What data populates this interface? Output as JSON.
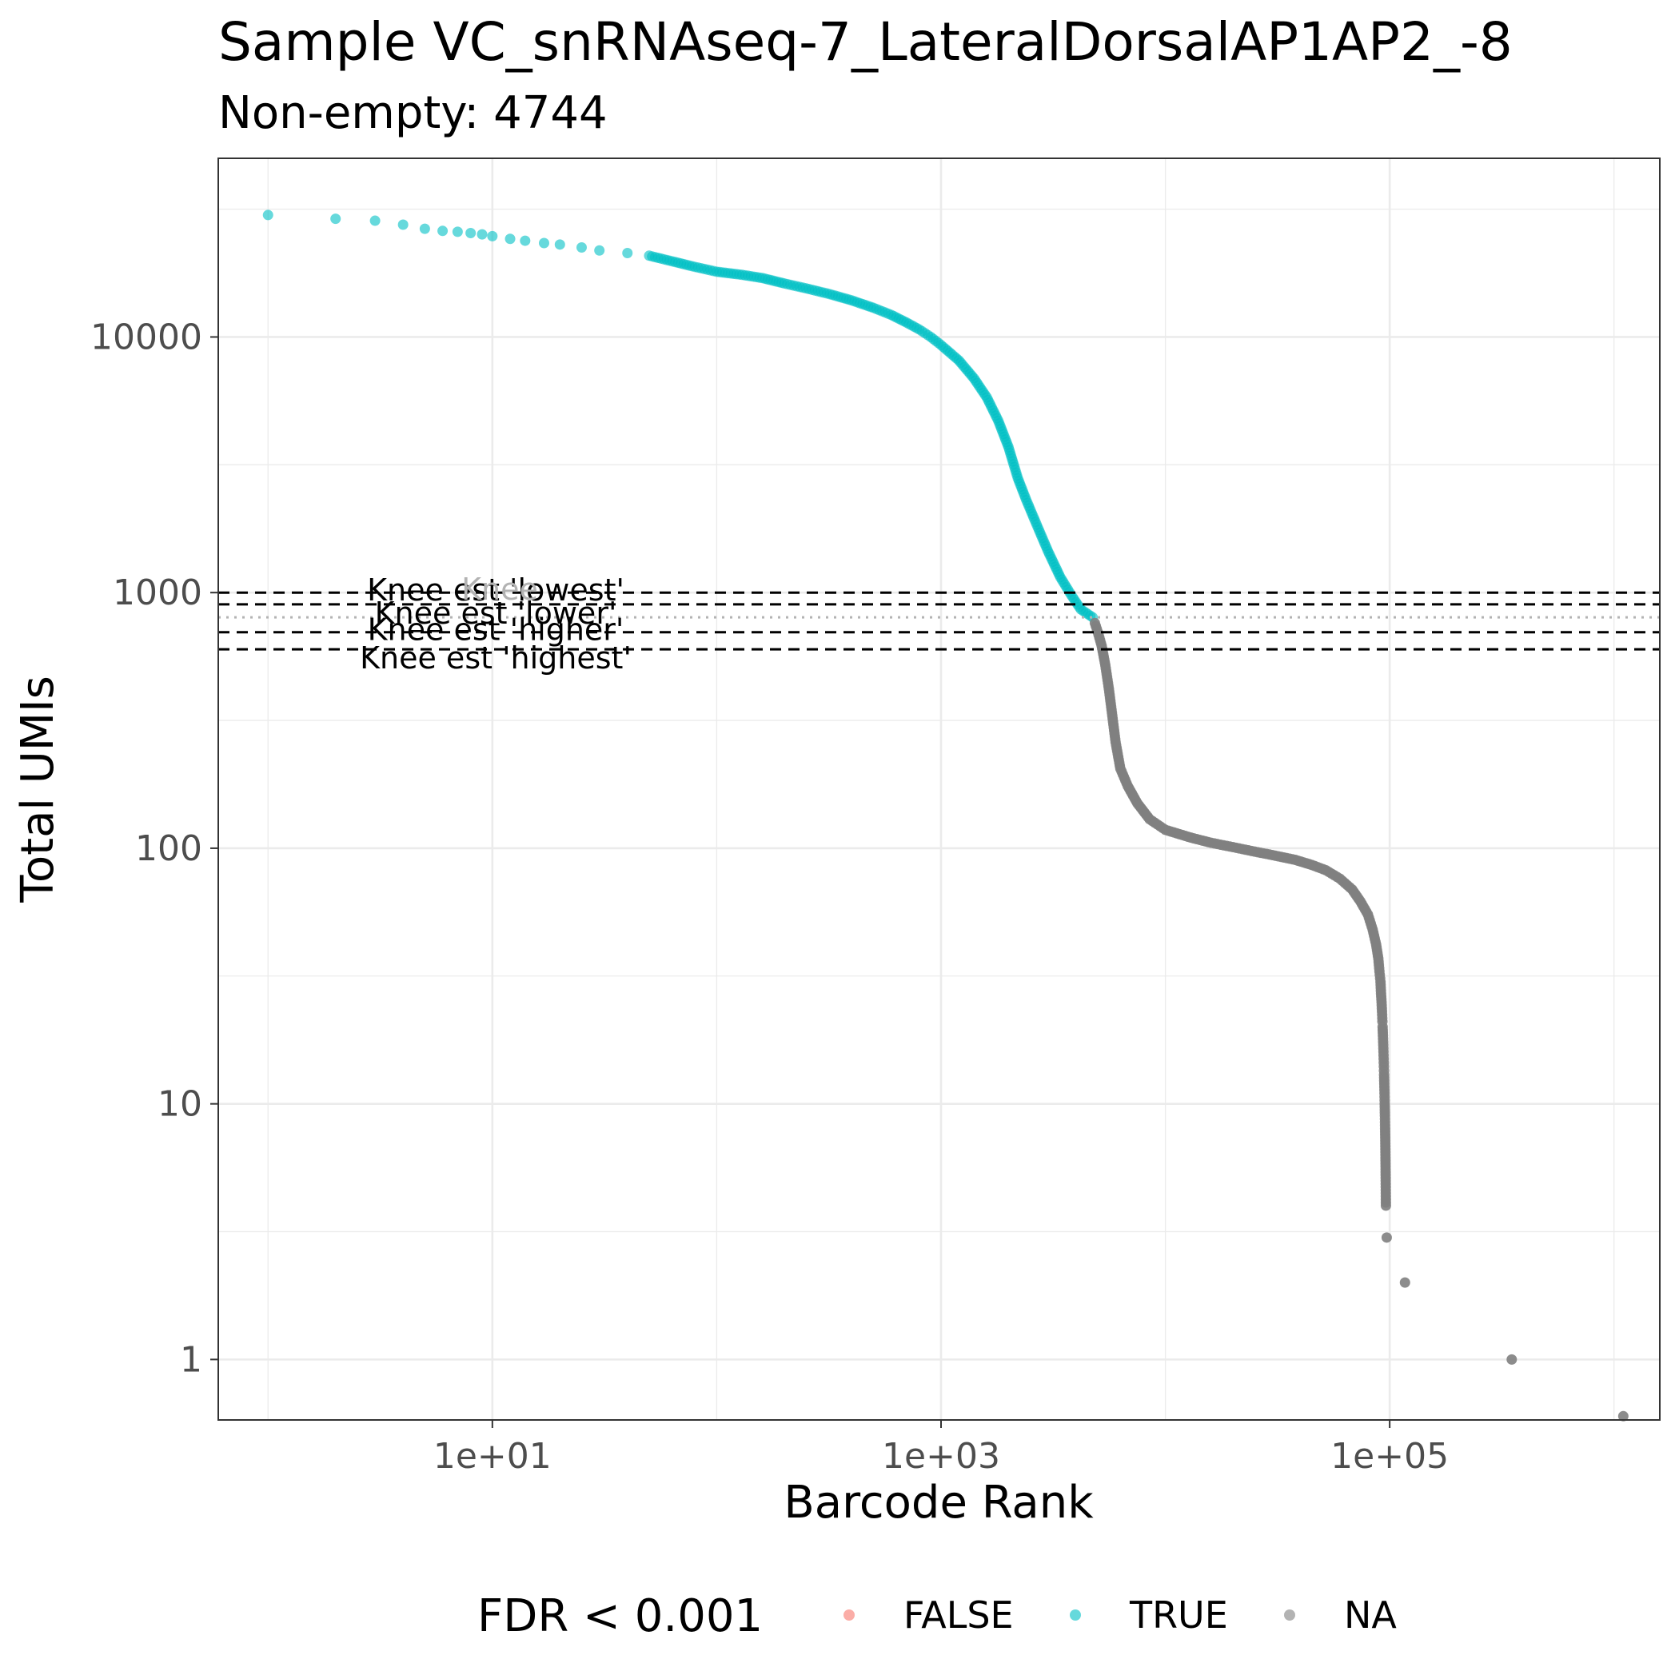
{
  "chart_data": {
    "type": "scatter",
    "title": "Sample VC_snRNAseq-7_LateralDorsalAP1AP2_-8",
    "subtitle": "Non-empty: 4744",
    "xlabel": "Barcode Rank",
    "ylabel": "Total UMIs",
    "x_scale": "log10",
    "y_scale": "log10",
    "xlim": [
      0.6,
      1600000
    ],
    "ylim": [
      0.58,
      50000
    ],
    "x_ticks": [
      {
        "value": 10,
        "label": "1e+01"
      },
      {
        "value": 1000,
        "label": "1e+03"
      },
      {
        "value": 100000,
        "label": "1e+05"
      }
    ],
    "y_ticks": [
      {
        "value": 1,
        "label": "1"
      },
      {
        "value": 10,
        "label": "10"
      },
      {
        "value": 100,
        "label": "100"
      },
      {
        "value": 1000,
        "label": "1000"
      },
      {
        "value": 10000,
        "label": "10000"
      }
    ],
    "grid": true,
    "legend": {
      "title": "FDR < 0.001",
      "position": "bottom",
      "entries": [
        {
          "label": "FALSE",
          "color": "#F8766D"
        },
        {
          "label": "TRUE",
          "color": "#00BFC4"
        },
        {
          "label": "NA",
          "color": "#808080"
        }
      ]
    },
    "hlines": [
      {
        "label": "Knee est 'lowest'",
        "y": 1000,
        "style": "dashed",
        "color": "#000000"
      },
      {
        "label": "Knee est 'lower'",
        "y": 900,
        "style": "dashed",
        "color": "#000000"
      },
      {
        "label": "Knee",
        "y": 800,
        "style": "dotted",
        "color": "#b3b3b3"
      },
      {
        "label": "Knee est 'higher'",
        "y": 700,
        "style": "dashed",
        "color": "#000000"
      },
      {
        "label": "Knee est 'highest'",
        "y": 600,
        "style": "dashed",
        "color": "#000000"
      }
    ],
    "series": [
      {
        "name": "TRUE",
        "color": "#00BFC4",
        "points": [
          [
            1,
            30000
          ],
          [
            2,
            29000
          ],
          [
            3,
            28500
          ],
          [
            4,
            27500
          ],
          [
            5,
            26500
          ],
          [
            6,
            26000
          ],
          [
            7,
            25800
          ],
          [
            8,
            25500
          ],
          [
            9,
            25200
          ],
          [
            10,
            24800
          ],
          [
            12,
            24200
          ],
          [
            14,
            23800
          ],
          [
            17,
            23300
          ],
          [
            20,
            23000
          ],
          [
            25,
            22400
          ],
          [
            30,
            21800
          ],
          [
            40,
            21300
          ],
          [
            50,
            20800
          ],
          [
            60,
            20000
          ],
          [
            80,
            18800
          ],
          [
            100,
            18000
          ],
          [
            130,
            17500
          ],
          [
            160,
            17000
          ],
          [
            200,
            16200
          ],
          [
            250,
            15500
          ],
          [
            320,
            14700
          ],
          [
            400,
            13900
          ],
          [
            500,
            13000
          ],
          [
            600,
            12200
          ],
          [
            700,
            11400
          ],
          [
            800,
            10700
          ],
          [
            900,
            10000
          ],
          [
            1000,
            9300
          ],
          [
            1200,
            8100
          ],
          [
            1400,
            6900
          ],
          [
            1600,
            5800
          ],
          [
            1800,
            4700
          ],
          [
            2000,
            3700
          ],
          [
            2200,
            2800
          ],
          [
            2400,
            2300
          ],
          [
            2700,
            1800
          ],
          [
            3000,
            1450
          ],
          [
            3400,
            1150
          ],
          [
            3800,
            980
          ],
          [
            4200,
            860
          ],
          [
            4744,
            800
          ]
        ]
      },
      {
        "name": "NA",
        "color": "#808080",
        "points": [
          [
            4850,
            760
          ],
          [
            5000,
            700
          ],
          [
            5200,
            620
          ],
          [
            5400,
            520
          ],
          [
            5600,
            420
          ],
          [
            5800,
            330
          ],
          [
            6000,
            260
          ],
          [
            6300,
            205
          ],
          [
            6800,
            175
          ],
          [
            7500,
            150
          ],
          [
            8500,
            130
          ],
          [
            10000,
            118
          ],
          [
            13000,
            110
          ],
          [
            16000,
            105
          ],
          [
            20000,
            101
          ],
          [
            25000,
            97
          ],
          [
            30000,
            94
          ],
          [
            38000,
            90
          ],
          [
            45000,
            86
          ],
          [
            52000,
            82
          ],
          [
            60000,
            76
          ],
          [
            68000,
            69
          ],
          [
            74000,
            62
          ],
          [
            80000,
            55
          ],
          [
            84000,
            48
          ],
          [
            87000,
            42
          ],
          [
            89000,
            37
          ],
          [
            90000,
            33
          ],
          [
            91000,
            30
          ],
          [
            91500,
            27
          ],
          [
            92000,
            25
          ],
          [
            92400,
            23
          ],
          [
            92800,
            21
          ],
          [
            93000,
            20
          ],
          [
            93200,
            19
          ],
          [
            93400,
            18
          ],
          [
            93600,
            17
          ],
          [
            93800,
            16
          ],
          [
            94000,
            15
          ],
          [
            94200,
            14
          ],
          [
            94400,
            13
          ],
          [
            94600,
            12
          ],
          [
            94800,
            11
          ],
          [
            95000,
            10
          ],
          [
            95200,
            9
          ],
          [
            95400,
            8
          ],
          [
            95600,
            7
          ],
          [
            95800,
            6
          ],
          [
            96000,
            5
          ],
          [
            96200,
            4
          ],
          [
            97000,
            3
          ],
          [
            117000,
            2
          ],
          [
            350000,
            1
          ],
          [
            1100000,
            0.6
          ]
        ]
      }
    ]
  }
}
